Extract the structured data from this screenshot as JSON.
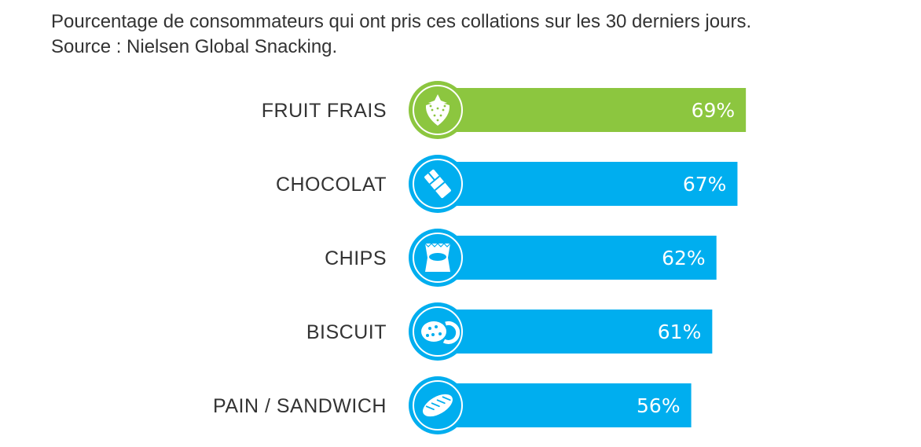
{
  "header": {
    "line1": "Pourcentage de consommateurs qui ont pris ces collations sur les 30 derniers jours.",
    "line2": "Source : Nielsen Global Snacking."
  },
  "chart_data": {
    "type": "bar",
    "orientation": "horizontal",
    "categories": [
      "FRUIT FRAIS",
      "CHOCOLAT",
      "CHIPS",
      "BISCUIT",
      "PAIN / SANDWICH"
    ],
    "values": [
      69,
      67,
      62,
      61,
      56
    ],
    "value_labels": [
      "69%",
      "67%",
      "62%",
      "61%",
      "56%"
    ],
    "icons": [
      "strawberry-icon",
      "chocolate-bar-icon",
      "chips-bag-icon",
      "cookies-icon",
      "bread-icon"
    ],
    "colors": [
      "#8cc63f",
      "#00aeef",
      "#00aeef",
      "#00aeef",
      "#00aeef"
    ],
    "xlim": [
      0,
      100
    ],
    "grid": false,
    "legend": "none"
  }
}
